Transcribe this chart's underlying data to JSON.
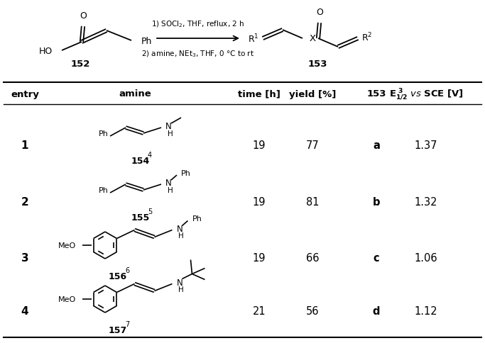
{
  "bg_color": "#ffffff",
  "text_color": "#000000",
  "entries": [
    {
      "entry": "1",
      "amine_label": "154",
      "amine_sup": "4",
      "time": "19",
      "yield": "77",
      "compound": "a",
      "e12": "1.37"
    },
    {
      "entry": "2",
      "amine_label": "155",
      "amine_sup": "5",
      "time": "19",
      "yield": "81",
      "compound": "b",
      "e12": "1.32"
    },
    {
      "entry": "3",
      "amine_label": "156",
      "amine_sup": "6",
      "time": "19",
      "yield": "66",
      "compound": "c",
      "e12": "1.06"
    },
    {
      "entry": "4",
      "amine_label": "157",
      "amine_sup": "7",
      "time": "21",
      "yield": "56",
      "compound": "d",
      "e12": "1.12"
    }
  ]
}
